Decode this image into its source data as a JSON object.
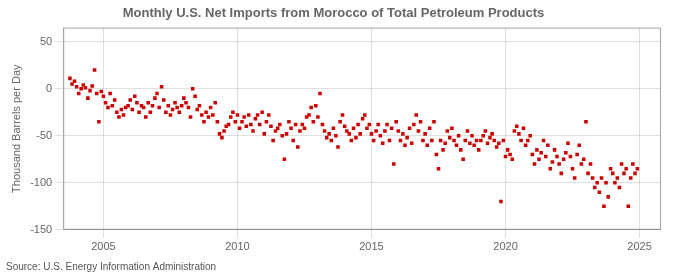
{
  "chart_data": {
    "type": "scatter",
    "title": "Monthly U.S. Net Imports from Morocco of Total Petroleum Products",
    "y_label": "Thousand Barrels per Day",
    "annotation": "Source: U.S. Energy Information Administration",
    "color": "#cc0000",
    "marker": "square",
    "grid": true,
    "xlim": [
      2003.5,
      2025.8
    ],
    "xticks": [
      2005,
      2010,
      2015,
      2020,
      2025
    ],
    "ylim": [
      -150,
      65
    ],
    "yticks": [
      -150,
      -100,
      -50,
      0,
      50
    ],
    "x": [
      2003.75,
      2003.83,
      2003.92,
      2004.0,
      2004.08,
      2004.17,
      2004.25,
      2004.33,
      2004.42,
      2004.5,
      2004.58,
      2004.67,
      2004.75,
      2004.83,
      2004.92,
      2005.0,
      2005.08,
      2005.17,
      2005.25,
      2005.33,
      2005.42,
      2005.5,
      2005.58,
      2005.67,
      2005.75,
      2005.83,
      2005.92,
      2006.0,
      2006.08,
      2006.17,
      2006.25,
      2006.33,
      2006.42,
      2006.5,
      2006.58,
      2006.67,
      2006.75,
      2006.83,
      2006.92,
      2007.0,
      2007.08,
      2007.17,
      2007.25,
      2007.33,
      2007.42,
      2007.5,
      2007.58,
      2007.67,
      2007.75,
      2007.83,
      2007.92,
      2008.0,
      2008.08,
      2008.17,
      2008.25,
      2008.33,
      2008.42,
      2008.5,
      2008.58,
      2008.67,
      2008.75,
      2008.83,
      2008.92,
      2009.0,
      2009.08,
      2009.17,
      2009.25,
      2009.33,
      2009.42,
      2009.5,
      2009.58,
      2009.67,
      2009.75,
      2009.83,
      2009.92,
      2010.0,
      2010.08,
      2010.17,
      2010.25,
      2010.33,
      2010.42,
      2010.5,
      2010.58,
      2010.67,
      2010.75,
      2010.83,
      2010.92,
      2011.0,
      2011.08,
      2011.17,
      2011.25,
      2011.33,
      2011.42,
      2011.5,
      2011.58,
      2011.67,
      2011.75,
      2011.83,
      2011.92,
      2012.0,
      2012.08,
      2012.17,
      2012.25,
      2012.33,
      2012.42,
      2012.5,
      2012.58,
      2012.67,
      2012.75,
      2012.83,
      2012.92,
      2013.0,
      2013.08,
      2013.17,
      2013.25,
      2013.33,
      2013.42,
      2013.5,
      2013.58,
      2013.67,
      2013.75,
      2013.83,
      2013.92,
      2014.0,
      2014.08,
      2014.17,
      2014.25,
      2014.33,
      2014.42,
      2014.5,
      2014.58,
      2014.67,
      2014.75,
      2014.83,
      2014.92,
      2015.0,
      2015.08,
      2015.17,
      2015.25,
      2015.33,
      2015.42,
      2015.5,
      2015.58,
      2015.67,
      2015.75,
      2015.83,
      2015.92,
      2016.0,
      2016.08,
      2016.17,
      2016.25,
      2016.33,
      2016.42,
      2016.5,
      2016.58,
      2016.67,
      2016.75,
      2016.83,
      2016.92,
      2017.0,
      2017.08,
      2017.17,
      2017.25,
      2017.33,
      2017.42,
      2017.5,
      2017.58,
      2017.67,
      2017.75,
      2017.83,
      2017.92,
      2018.0,
      2018.08,
      2018.17,
      2018.25,
      2018.33,
      2018.42,
      2018.5,
      2018.58,
      2018.67,
      2018.75,
      2018.83,
      2018.92,
      2019.0,
      2019.08,
      2019.17,
      2019.25,
      2019.33,
      2019.42,
      2019.5,
      2019.58,
      2019.67,
      2019.75,
      2019.83,
      2019.92,
      2020.0,
      2020.08,
      2020.17,
      2020.25,
      2020.33,
      2020.42,
      2020.5,
      2020.58,
      2020.67,
      2020.75,
      2020.83,
      2020.92,
      2021.0,
      2021.08,
      2021.17,
      2021.25,
      2021.33,
      2021.42,
      2021.5,
      2021.58,
      2021.67,
      2021.75,
      2021.83,
      2021.92,
      2022.0,
      2022.08,
      2022.17,
      2022.25,
      2022.33,
      2022.42,
      2022.5,
      2022.58,
      2022.67,
      2022.75,
      2022.83,
      2022.92,
      2023.0,
      2023.08,
      2023.17,
      2023.25,
      2023.33,
      2023.42,
      2023.5,
      2023.58,
      2023.67,
      2023.75,
      2023.83,
      2023.92,
      2024.0,
      2024.08,
      2024.17,
      2024.25,
      2024.33,
      2024.42,
      2024.5,
      2024.58,
      2024.67,
      2024.75,
      2024.83,
      2024.92
    ],
    "values": [
      11,
      5,
      8,
      2,
      -5,
      0,
      4,
      1,
      -10,
      -2,
      3,
      20,
      -5,
      -35,
      -3,
      -8,
      -15,
      -20,
      -5,
      -18,
      -12,
      -25,
      -30,
      -22,
      -28,
      -20,
      -18,
      -12,
      -22,
      -8,
      -15,
      -25,
      -18,
      -20,
      -30,
      -15,
      -25,
      -18,
      -10,
      -5,
      -20,
      2,
      -12,
      -25,
      -18,
      -28,
      -22,
      -15,
      -20,
      -25,
      -18,
      -10,
      -15,
      -20,
      -30,
      0,
      -8,
      -22,
      -18,
      -28,
      -35,
      -25,
      -30,
      -20,
      -28,
      -15,
      -35,
      -48,
      -52,
      -45,
      -40,
      -38,
      -30,
      -25,
      -35,
      -28,
      -42,
      -35,
      -30,
      -40,
      -28,
      -38,
      -45,
      -32,
      -28,
      -38,
      -25,
      -48,
      -35,
      -28,
      -40,
      -55,
      -45,
      -42,
      -38,
      -50,
      -75,
      -48,
      -35,
      -42,
      -55,
      -38,
      -62,
      -45,
      -38,
      -42,
      -30,
      -28,
      -20,
      -35,
      -18,
      -30,
      -5,
      -38,
      -45,
      -52,
      -48,
      -55,
      -42,
      -50,
      -62,
      -35,
      -28,
      -40,
      -45,
      -48,
      -55,
      -42,
      -52,
      -38,
      -48,
      -32,
      -28,
      -42,
      -38,
      -48,
      -55,
      -45,
      -38,
      -50,
      -58,
      -45,
      -38,
      -55,
      -42,
      -80,
      -35,
      -45,
      -55,
      -48,
      -60,
      -52,
      -42,
      -58,
      -38,
      -28,
      -45,
      -35,
      -55,
      -48,
      -60,
      -42,
      -55,
      -35,
      -70,
      -85,
      -55,
      -65,
      -58,
      -45,
      -52,
      -42,
      -55,
      -60,
      -50,
      -65,
      -75,
      -55,
      -45,
      -58,
      -50,
      -60,
      -55,
      -65,
      -55,
      -50,
      -45,
      -58,
      -52,
      -48,
      -55,
      -62,
      -58,
      -120,
      -55,
      -72,
      -65,
      -70,
      -75,
      -45,
      -40,
      -48,
      -55,
      -42,
      -60,
      -55,
      -50,
      -70,
      -80,
      -65,
      -75,
      -68,
      -55,
      -72,
      -60,
      -85,
      -78,
      -65,
      -72,
      -80,
      -90,
      -75,
      -68,
      -58,
      -72,
      -85,
      -95,
      -70,
      -60,
      -80,
      -75,
      -35,
      -90,
      -80,
      -95,
      -105,
      -100,
      -110,
      -95,
      -125,
      -100,
      -115,
      -85,
      -90,
      -100,
      -95,
      -105,
      -80,
      -90,
      -85,
      -125,
      -95,
      -80,
      -90,
      -85
    ]
  }
}
